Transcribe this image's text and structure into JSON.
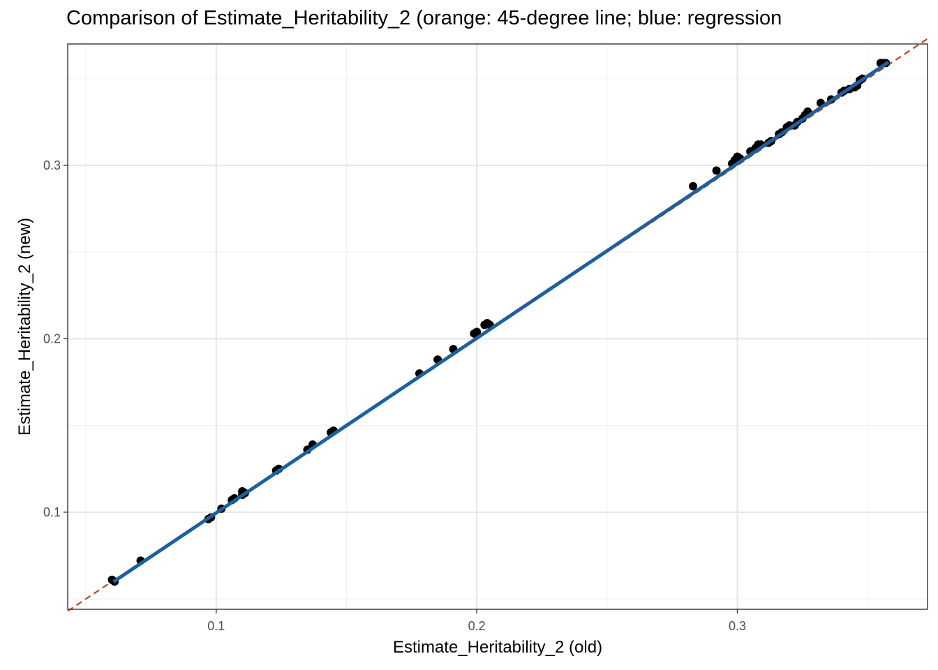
{
  "chart_data": {
    "type": "scatter",
    "title": "Comparison of Estimate_Heritability_2 (orange: 45-degree line; blue: regression",
    "xlabel": "Estimate_Heritability_2 (old)",
    "ylabel": "Estimate_Heritability_2 (new)",
    "xlim": [
      0.043,
      0.373
    ],
    "ylim": [
      0.044,
      0.37
    ],
    "x_ticks": [
      0.1,
      0.2,
      0.3
    ],
    "y_ticks": [
      0.1,
      0.2,
      0.3
    ],
    "x_tick_labels": [
      "0.1",
      "0.2",
      "0.3"
    ],
    "y_tick_labels": [
      "0.1",
      "0.2",
      "0.3"
    ],
    "grid": true,
    "legend": "none",
    "colors": {
      "points": "#000000",
      "regression_line": "#1f5f9c",
      "identity_line": "#c0441a",
      "grid_major": "#e5e5e5",
      "grid_minor": "#f2f2f2",
      "panel_border": "#333333"
    },
    "points": [
      [
        0.06,
        0.061
      ],
      [
        0.061,
        0.06
      ],
      [
        0.071,
        0.072
      ],
      [
        0.097,
        0.096
      ],
      [
        0.098,
        0.097
      ],
      [
        0.102,
        0.102
      ],
      [
        0.106,
        0.107
      ],
      [
        0.107,
        0.108
      ],
      [
        0.11,
        0.11
      ],
      [
        0.111,
        0.111
      ],
      [
        0.11,
        0.112
      ],
      [
        0.123,
        0.124
      ],
      [
        0.124,
        0.125
      ],
      [
        0.135,
        0.136
      ],
      [
        0.137,
        0.139
      ],
      [
        0.144,
        0.146
      ],
      [
        0.145,
        0.147
      ],
      [
        0.178,
        0.18
      ],
      [
        0.185,
        0.188
      ],
      [
        0.191,
        0.194
      ],
      [
        0.199,
        0.203
      ],
      [
        0.2,
        0.204
      ],
      [
        0.203,
        0.208
      ],
      [
        0.204,
        0.209
      ],
      [
        0.205,
        0.208
      ],
      [
        0.283,
        0.288
      ],
      [
        0.292,
        0.297
      ],
      [
        0.298,
        0.301
      ],
      [
        0.299,
        0.303
      ],
      [
        0.3,
        0.305
      ],
      [
        0.301,
        0.304
      ],
      [
        0.305,
        0.308
      ],
      [
        0.307,
        0.31
      ],
      [
        0.308,
        0.312
      ],
      [
        0.309,
        0.312
      ],
      [
        0.312,
        0.313
      ],
      [
        0.313,
        0.314
      ],
      [
        0.316,
        0.318
      ],
      [
        0.317,
        0.319
      ],
      [
        0.319,
        0.322
      ],
      [
        0.32,
        0.323
      ],
      [
        0.322,
        0.323
      ],
      [
        0.323,
        0.325
      ],
      [
        0.325,
        0.327
      ],
      [
        0.326,
        0.329
      ],
      [
        0.327,
        0.331
      ],
      [
        0.332,
        0.336
      ],
      [
        0.336,
        0.338
      ],
      [
        0.34,
        0.342
      ],
      [
        0.341,
        0.343
      ],
      [
        0.343,
        0.344
      ],
      [
        0.345,
        0.345
      ],
      [
        0.346,
        0.346
      ],
      [
        0.347,
        0.349
      ],
      [
        0.348,
        0.35
      ],
      [
        0.355,
        0.359
      ],
      [
        0.356,
        0.359
      ],
      [
        0.357,
        0.359
      ]
    ],
    "regression_line": {
      "x": [
        0.0605,
        0.358
      ],
      "y": [
        0.0598,
        0.3595
      ]
    },
    "identity_line": {
      "x": [
        0.043,
        0.373
      ],
      "y": [
        0.043,
        0.373
      ]
    }
  }
}
